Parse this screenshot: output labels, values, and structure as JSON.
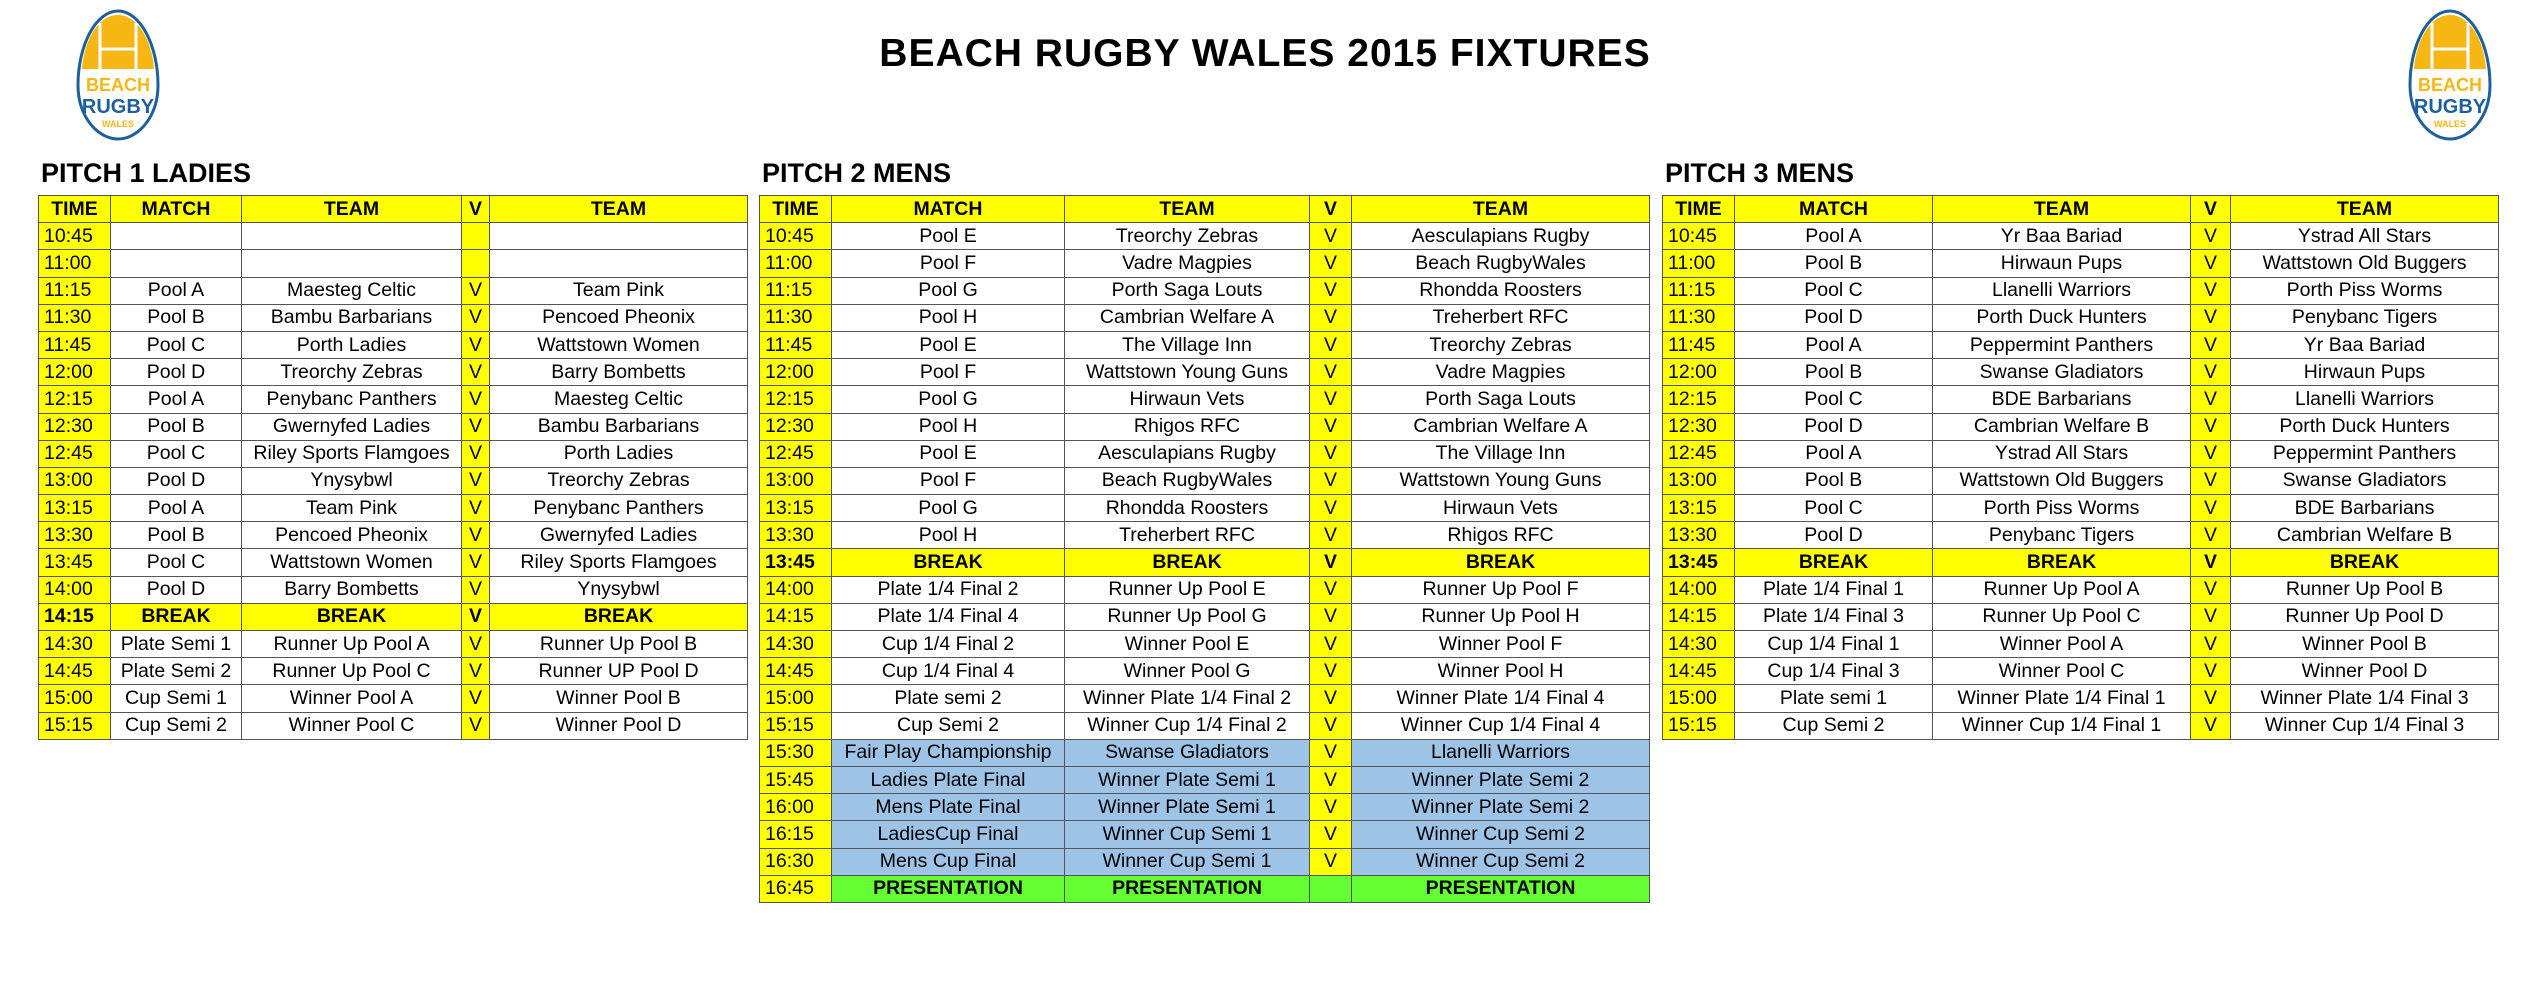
{
  "header": {
    "title": "BEACH RUGBY WALES 2015 FIXTURES",
    "logo_left": {
      "line1": "BEACH",
      "line2": "RUGBY",
      "line3": "WALES"
    },
    "logo_right": {
      "line1": "BEACH",
      "line2": "RUGBY",
      "line3": "WALES"
    }
  },
  "columns": [
    "TIME",
    "MATCH",
    "TEAM",
    "V",
    "TEAM"
  ],
  "pitches": [
    {
      "title": "PITCH 1 LADIES",
      "rows": [
        [
          "10:45",
          "",
          "",
          "",
          ""
        ],
        [
          "11:00",
          "",
          "",
          "",
          ""
        ],
        [
          "11:15",
          "Pool A",
          "Maesteg Celtic",
          "V",
          "Team Pink"
        ],
        [
          "11:30",
          "Pool B",
          "Bambu Barbarians",
          "V",
          "Pencoed Pheonix"
        ],
        [
          "11:45",
          "Pool C",
          "Porth Ladies",
          "V",
          "Wattstown Women"
        ],
        [
          "12:00",
          "Pool D",
          "Treorchy Zebras",
          "V",
          "Barry Bombetts"
        ],
        [
          "12:15",
          "Pool A",
          "Penybanc Panthers",
          "V",
          "Maesteg Celtic"
        ],
        [
          "12:30",
          "Pool B",
          "Gwernyfed Ladies",
          "V",
          "Bambu Barbarians"
        ],
        [
          "12:45",
          "Pool C",
          "Riley Sports Flamgoes",
          "V",
          "Porth Ladies"
        ],
        [
          "13:00",
          "Pool D",
          "Ynysybwl",
          "V",
          "Treorchy Zebras"
        ],
        [
          "13:15",
          "Pool A",
          "Team Pink",
          "V",
          "Penybanc Panthers"
        ],
        [
          "13:30",
          "Pool B",
          "Pencoed Pheonix",
          "V",
          "Gwernyfed Ladies"
        ],
        [
          "13:45",
          "Pool C",
          "Wattstown Women",
          "V",
          "Riley Sports Flamgoes"
        ],
        [
          "14:00",
          "Pool D",
          "Barry Bombetts",
          "V",
          "Ynysybwl"
        ],
        [
          "14:15",
          "BREAK",
          "BREAK",
          "V",
          "BREAK"
        ],
        [
          "14:30",
          "Plate Semi 1",
          "Runner Up Pool A",
          "V",
          "Runner Up Pool B"
        ],
        [
          "14:45",
          "Plate Semi 2",
          "Runner Up Pool C",
          "V",
          "Runner UP Pool D"
        ],
        [
          "15:00",
          "Cup Semi 1",
          "Winner Pool A",
          "V",
          "Winner Pool B"
        ],
        [
          "15:15",
          "Cup Semi 2",
          "Winner Pool C",
          "V",
          "Winner Pool D"
        ]
      ]
    },
    {
      "title": "PITCH 2 MENS",
      "rows": [
        [
          "10:45",
          "Pool E",
          "Treorchy Zebras",
          "V",
          "Aesculapians Rugby"
        ],
        [
          "11:00",
          "Pool F",
          "Vadre Magpies",
          "V",
          "Beach RugbyWales"
        ],
        [
          "11:15",
          "Pool G",
          "Porth Saga Louts",
          "V",
          "Rhondda Roosters"
        ],
        [
          "11:30",
          "Pool H",
          "Cambrian Welfare A",
          "V",
          "Treherbert RFC"
        ],
        [
          "11:45",
          "Pool E",
          "The Village Inn",
          "V",
          "Treorchy Zebras"
        ],
        [
          "12:00",
          "Pool F",
          "Wattstown Young Guns",
          "V",
          "Vadre Magpies"
        ],
        [
          "12:15",
          "Pool G",
          "Hirwaun Vets",
          "V",
          "Porth Saga Louts"
        ],
        [
          "12:30",
          "Pool H",
          "Rhigos RFC",
          "V",
          "Cambrian Welfare A"
        ],
        [
          "12:45",
          "Pool E",
          "Aesculapians Rugby",
          "V",
          "The Village Inn"
        ],
        [
          "13:00",
          "Pool F",
          "Beach RugbyWales",
          "V",
          "Wattstown Young Guns"
        ],
        [
          "13:15",
          "Pool G",
          "Rhondda Roosters",
          "V",
          "Hirwaun Vets"
        ],
        [
          "13:30",
          "Pool H",
          "Treherbert RFC",
          "V",
          "Rhigos RFC"
        ],
        [
          "13:45",
          "BREAK",
          "BREAK",
          "V",
          "BREAK"
        ],
        [
          "14:00",
          "Plate 1/4 Final 2",
          "Runner Up Pool E",
          "V",
          "Runner Up Pool F"
        ],
        [
          "14:15",
          "Plate 1/4 Final 4",
          "Runner Up Pool G",
          "V",
          "Runner Up Pool H"
        ],
        [
          "14:30",
          "Cup 1/4 Final 2",
          "Winner Pool E",
          "V",
          "Winner Pool F"
        ],
        [
          "14:45",
          "Cup 1/4 Final 4",
          "Winner Pool G",
          "V",
          "Winner Pool H"
        ],
        [
          "15:00",
          "Plate semi 2",
          "Winner Plate 1/4 Final 2",
          "V",
          "Winner Plate 1/4 Final 4"
        ],
        [
          "15:15",
          "Cup Semi 2",
          "Winner Cup 1/4 Final 2",
          "V",
          "Winner Cup 1/4 Final 4"
        ],
        [
          "15:30",
          "Fair Play Championship",
          "Swanse Gladiators",
          "V",
          "Llanelli Warriors"
        ],
        [
          "15:45",
          "Ladies Plate Final",
          "Winner Plate Semi 1",
          "V",
          "Winner Plate Semi 2"
        ],
        [
          "16:00",
          "Mens Plate Final",
          "Winner Plate Semi 1",
          "V",
          "Winner Plate Semi 2"
        ],
        [
          "16:15",
          "LadiesCup Final",
          "Winner Cup Semi 1",
          "V",
          "Winner Cup Semi 2"
        ],
        [
          "16:30",
          "Mens Cup Final",
          "Winner Cup Semi 1",
          "V",
          "Winner Cup Semi 2"
        ],
        [
          "16:45",
          "PRESENTATION",
          "PRESENTATION",
          "",
          "PRESENTATION"
        ]
      ]
    },
    {
      "title": "PITCH 3 MENS",
      "rows": [
        [
          "10:45",
          "Pool A",
          "Yr Baa Bariad",
          "V",
          "Ystrad All Stars"
        ],
        [
          "11:00",
          "Pool B",
          "Hirwaun Pups",
          "V",
          "Wattstown Old Buggers"
        ],
        [
          "11:15",
          "Pool C",
          "Llanelli Warriors",
          "V",
          "Porth Piss Worms"
        ],
        [
          "11:30",
          "Pool D",
          "Porth Duck Hunters",
          "V",
          "Penybanc Tigers"
        ],
        [
          "11:45",
          "Pool A",
          "Peppermint Panthers",
          "V",
          "Yr Baa Bariad"
        ],
        [
          "12:00",
          "Pool B",
          "Swanse Gladiators",
          "V",
          "Hirwaun Pups"
        ],
        [
          "12:15",
          "Pool C",
          "BDE Barbarians",
          "V",
          "Llanelli Warriors"
        ],
        [
          "12:30",
          "Pool D",
          "Cambrian Welfare B",
          "V",
          "Porth Duck Hunters"
        ],
        [
          "12:45",
          "Pool A",
          "Ystrad All Stars",
          "V",
          "Peppermint Panthers"
        ],
        [
          "13:00",
          "Pool B",
          "Wattstown Old Buggers",
          "V",
          "Swanse Gladiators"
        ],
        [
          "13:15",
          "Pool C",
          "Porth Piss Worms",
          "V",
          "BDE Barbarians"
        ],
        [
          "13:30",
          "Pool D",
          "Penybanc Tigers",
          "V",
          "Cambrian Welfare B"
        ],
        [
          "13:45",
          "BREAK",
          "BREAK",
          "V",
          "BREAK"
        ],
        [
          "14:00",
          "Plate 1/4 Final 1",
          "Runner Up Pool A",
          "V",
          "Runner Up Pool B"
        ],
        [
          "14:15",
          "Plate 1/4 Final 3",
          "Runner Up Pool C",
          "V",
          "Runner Up Pool D"
        ],
        [
          "14:30",
          "Cup 1/4 Final 1",
          "Winner Pool A",
          "V",
          "Winner Pool B"
        ],
        [
          "14:45",
          "Cup 1/4 Final 3",
          "Winner Pool C",
          "V",
          "Winner Pool D"
        ],
        [
          "15:00",
          "Plate semi 1",
          "Winner Plate 1/4 Final 1",
          "V",
          "Winner Plate 1/4 Final 3"
        ],
        [
          "15:15",
          "Cup Semi 2",
          "Winner Cup 1/4 Final 1",
          "V",
          "Winner Cup 1/4 Final 3"
        ]
      ]
    }
  ]
}
